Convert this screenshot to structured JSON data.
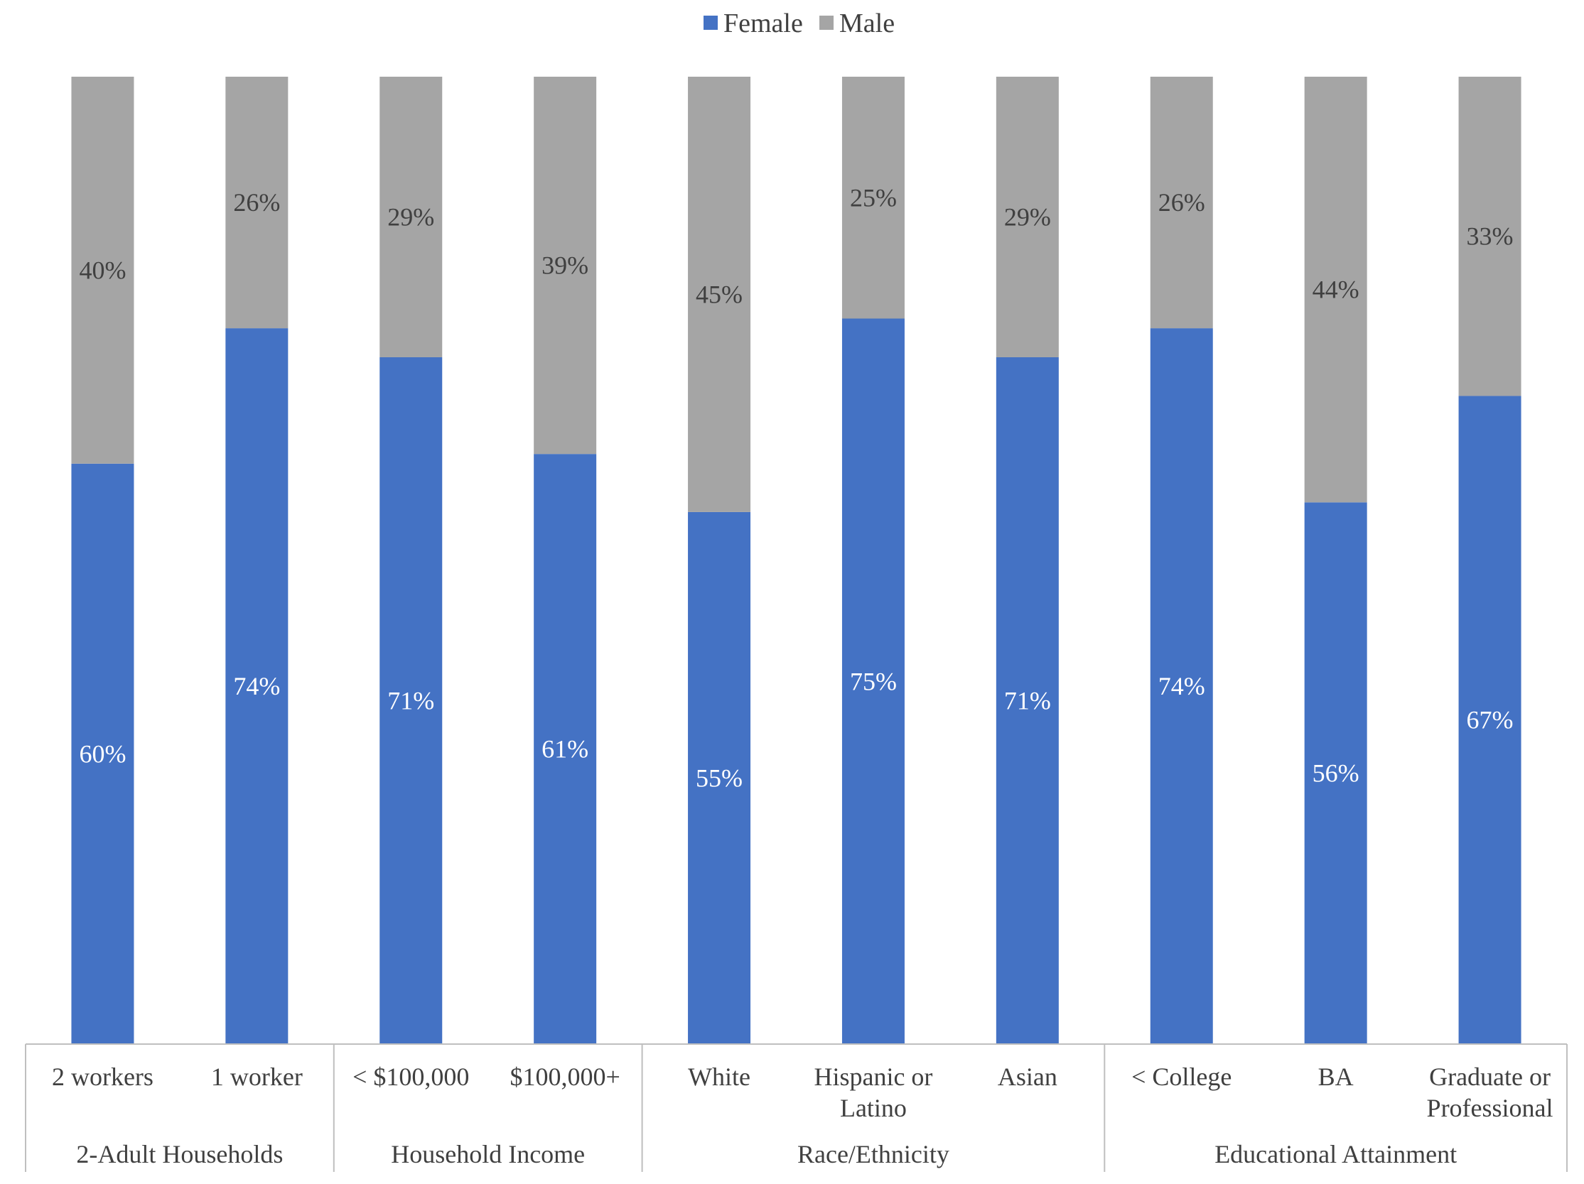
{
  "chart_data": {
    "type": "bar",
    "stacked": true,
    "normalized": true,
    "legend": {
      "position": "top-center",
      "items": [
        "Female",
        "Male"
      ]
    },
    "colors": {
      "Female": "#4472C4",
      "Male": "#A5A5A5",
      "female_label": "#FFFFFF",
      "male_label": "#404040",
      "axis": "#BFBFBF",
      "text": "#404040"
    },
    "ylim": [
      0,
      100
    ],
    "categories": [
      "2 workers",
      "1 worker",
      "< $100,000",
      "$100,000+",
      "White",
      "Hispanic or Latino",
      "Asian",
      "< College",
      "BA",
      "Graduate or Professional"
    ],
    "category_lines": [
      [
        "2 workers"
      ],
      [
        "1 worker"
      ],
      [
        "< $100,000"
      ],
      [
        "$100,000+"
      ],
      [
        "White"
      ],
      [
        "Hispanic or",
        "Latino"
      ],
      [
        "Asian"
      ],
      [
        "< College"
      ],
      [
        "BA"
      ],
      [
        "Graduate or",
        "Professional"
      ]
    ],
    "groups": [
      {
        "label": "2-Adult Households",
        "count": 2
      },
      {
        "label": "Household Income",
        "count": 2
      },
      {
        "label": "Race/Ethnicity",
        "count": 3
      },
      {
        "label": "Educational Attainment",
        "count": 3
      }
    ],
    "series": [
      {
        "name": "Female",
        "values": [
          60,
          74,
          71,
          61,
          55,
          75,
          71,
          74,
          56,
          67
        ],
        "labels": [
          "60%",
          "74%",
          "71%",
          "61%",
          "55%",
          "75%",
          "71%",
          "74%",
          "56%",
          "67%"
        ]
      },
      {
        "name": "Male",
        "values": [
          40,
          26,
          29,
          39,
          45,
          25,
          29,
          26,
          44,
          33
        ],
        "labels": [
          "40%",
          "26%",
          "29%",
          "39%",
          "45%",
          "25%",
          "29%",
          "26%",
          "44%",
          "33%"
        ]
      }
    ]
  }
}
